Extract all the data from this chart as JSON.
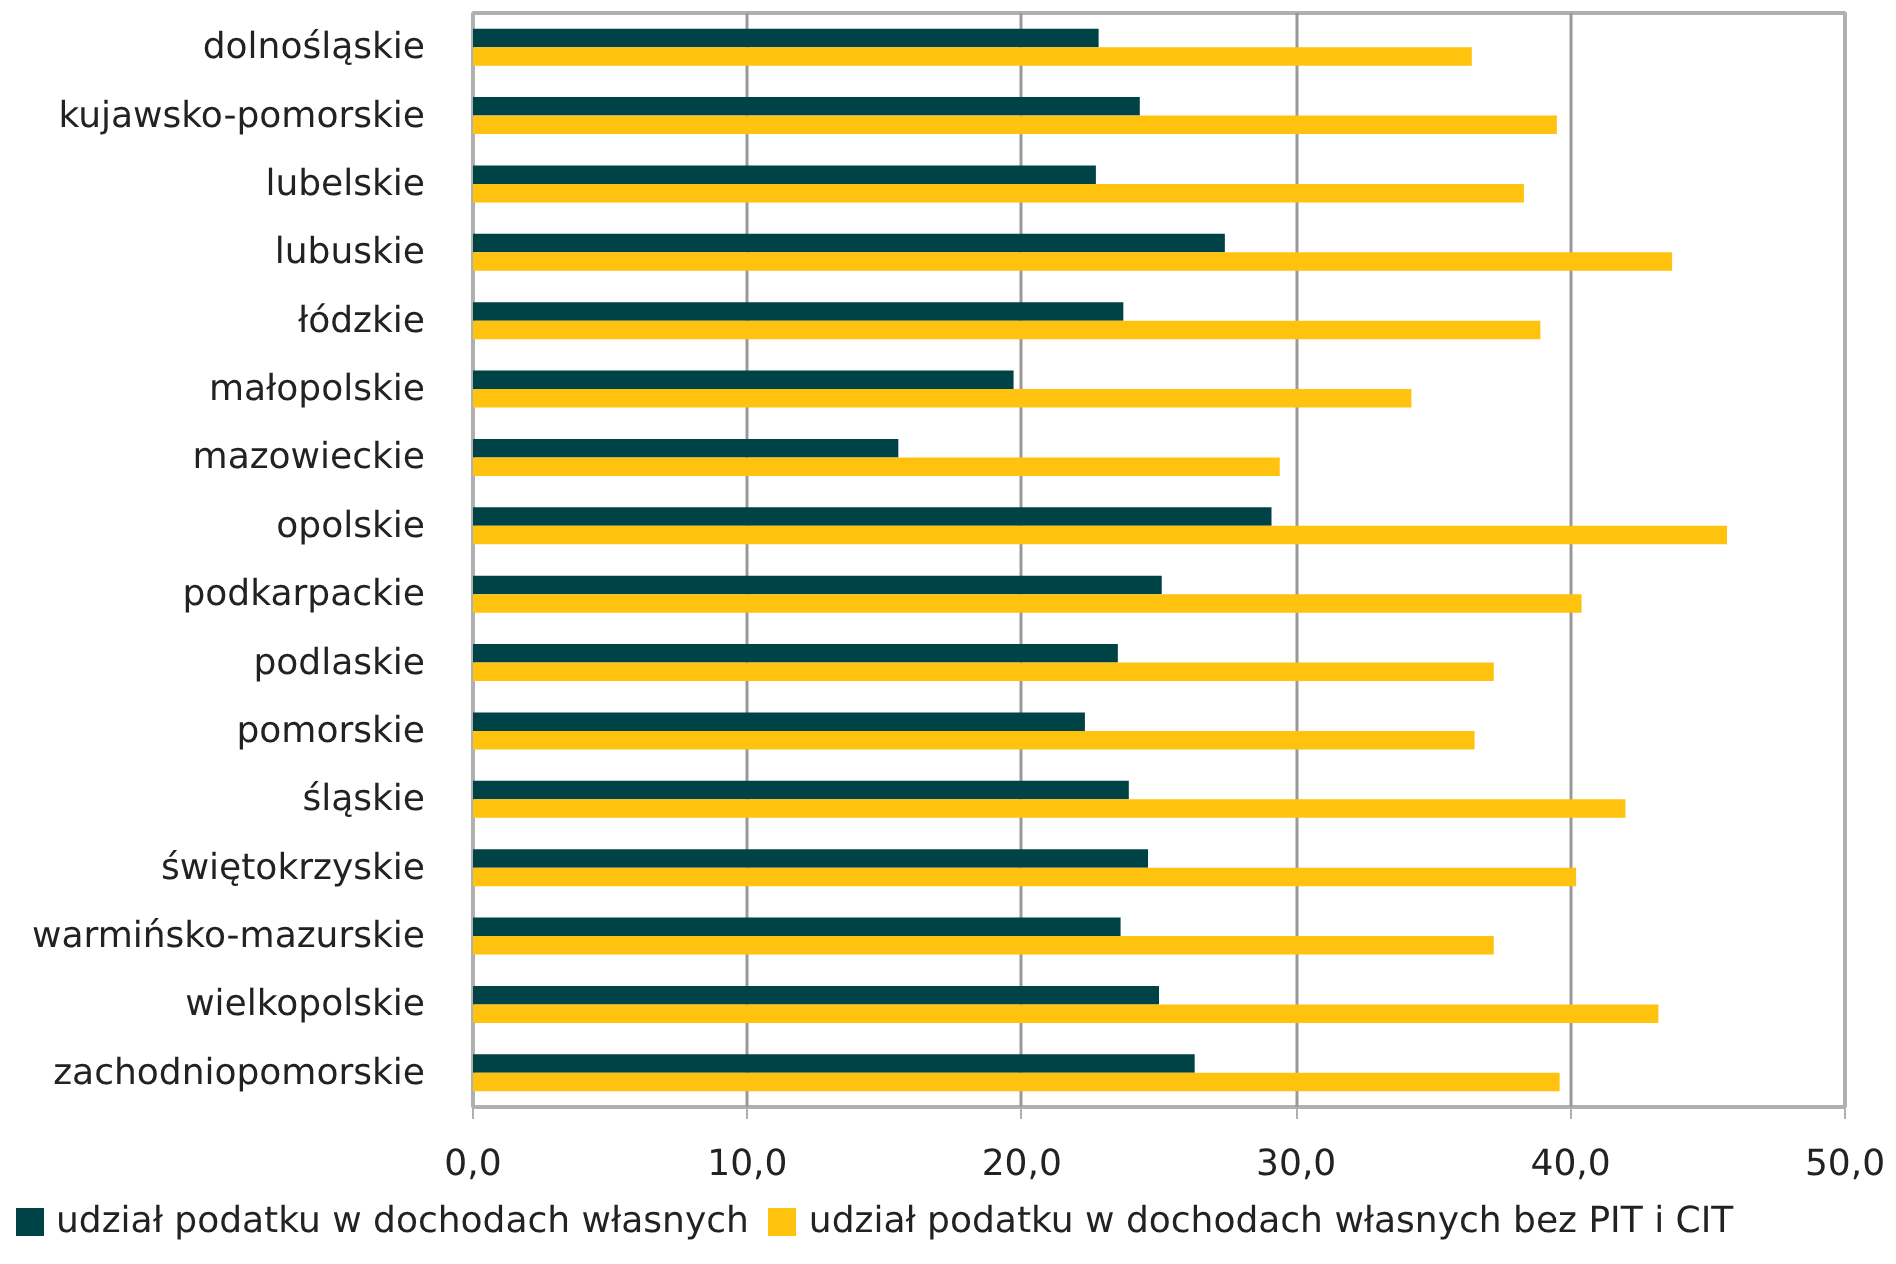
{
  "chart_data": {
    "type": "bar",
    "orientation": "horizontal",
    "categories": [
      "dolnośląskie",
      "kujawsko-pomorskie",
      "lubelskie",
      "lubuskie",
      "łódzkie",
      "małopolskie",
      "mazowieckie",
      "opolskie",
      "podkarpackie",
      "podlaskie",
      "pomorskie",
      "śląskie",
      "świętokrzyskie",
      "warmińsko-mazurskie",
      "wielkopolskie",
      "zachodniopomorskie"
    ],
    "series": [
      {
        "name": "udział podatku w dochodach własnych",
        "color": "#004346",
        "values": [
          22.8,
          24.3,
          22.7,
          27.4,
          23.7,
          19.7,
          15.5,
          29.1,
          25.1,
          23.5,
          22.3,
          23.9,
          24.6,
          23.6,
          25.0,
          26.3
        ]
      },
      {
        "name": "udział podatku w dochodach własnych bez PIT i CIT",
        "color": "#ffc20e",
        "values": [
          36.4,
          39.5,
          38.3,
          43.7,
          38.9,
          34.2,
          29.4,
          45.7,
          40.4,
          37.2,
          36.5,
          42.0,
          40.2,
          37.2,
          43.2,
          39.6
        ]
      }
    ],
    "xlim": [
      0,
      50
    ],
    "xticks": [
      {
        "value": 0,
        "label": "0,0"
      },
      {
        "value": 10,
        "label": "10,0"
      },
      {
        "value": 20,
        "label": "20,0"
      },
      {
        "value": 30,
        "label": "30,0"
      },
      {
        "value": 40,
        "label": "40,0"
      },
      {
        "value": 50,
        "label": "50,0"
      }
    ],
    "grid": "x",
    "legend": "bottom"
  }
}
